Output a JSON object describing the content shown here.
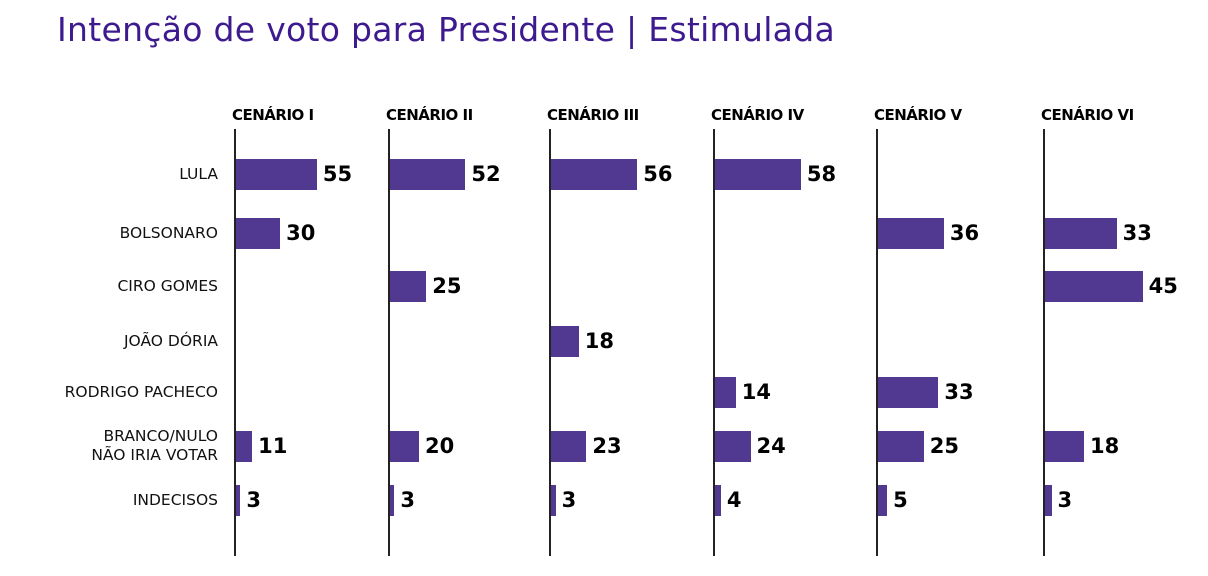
{
  "chart_data": {
    "type": "bar",
    "orientation": "horizontal",
    "title": "Intenção de voto para Presidente | Estimulada",
    "bar_color": "#513890",
    "title_color": "#3d1a8e",
    "categories": [
      "LULA",
      "BOLSONARO",
      "CIRO GOMES",
      "JOÃO DÓRIA",
      "RODRIGO PACHECO",
      "BRANCO/NULO\nNÃO IRIA VOTAR",
      "INDECISOS"
    ],
    "panels": [
      {
        "name": "CENÁRIO I",
        "values": [
          55,
          30,
          null,
          null,
          null,
          11,
          3
        ]
      },
      {
        "name": "CENÁRIO II",
        "values": [
          52,
          null,
          25,
          null,
          null,
          20,
          3
        ]
      },
      {
        "name": "CENÁRIO III",
        "values": [
          56,
          null,
          null,
          18,
          null,
          23,
          3
        ]
      },
      {
        "name": "CENÁRIO IV",
        "values": [
          58,
          null,
          null,
          null,
          14,
          24,
          4
        ]
      },
      {
        "name": "CENÁRIO V",
        "values": [
          null,
          36,
          null,
          null,
          33,
          25,
          5
        ]
      },
      {
        "name": "CENÁRIO VI",
        "values": [
          null,
          33,
          45,
          null,
          null,
          18,
          3
        ]
      }
    ],
    "grid": false
  }
}
